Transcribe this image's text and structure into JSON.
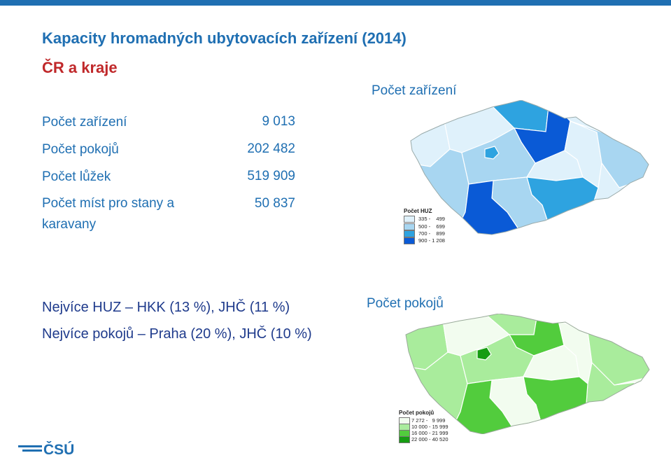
{
  "header": {
    "title": "Kapacity hromadných ubytovacích zařízení (2014)",
    "subtitle": "ČR a kraje"
  },
  "stats": [
    {
      "label": "Počet zařízení",
      "value": "9 013"
    },
    {
      "label": "Počet pokojů",
      "value": "202 482"
    },
    {
      "label": "Počet lůžek",
      "value": "519 909"
    },
    {
      "label": "Počet míst pro stany a karavany",
      "value": "50 837"
    }
  ],
  "notes": {
    "line1": "Nejvíce HUZ – HKK (13 %), JHČ (11 %)",
    "line2": "Nejvíce pokojů – Praha (20 %), JHČ (10 %)"
  },
  "map_huz": {
    "title": "Počet zařízení",
    "legend_title": "Počet HUZ",
    "legend": [
      {
        "range": "335 -    499",
        "color": "#dff1fb"
      },
      {
        "range": "500 -    699",
        "color": "#a8d6f1"
      },
      {
        "range": "700 -    899",
        "color": "#2ea3e0"
      },
      {
        "range": "900 - 1 208",
        "color": "#0a5ad6"
      }
    ]
  },
  "map_rooms": {
    "title": "Počet pokojů",
    "legend_title": "Počet pokojů",
    "legend": [
      {
        "range": "7 272 -   9 999",
        "color": "#f2fcef"
      },
      {
        "range": "10 000 - 15 999",
        "color": "#a9ec9c"
      },
      {
        "range": "16 000 - 21 999",
        "color": "#52cc3d"
      },
      {
        "range": "22 000 - 40 520",
        "color": "#169c12"
      }
    ]
  },
  "logo": {
    "text": "ČSÚ",
    "color": "#1f6fb2"
  }
}
